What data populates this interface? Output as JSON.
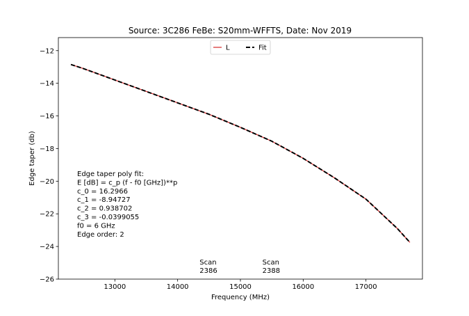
{
  "chart_data": {
    "type": "line",
    "title": "Source: 3C286 FeBe: S20mm-WFFTS, Date: Nov 2019",
    "xlabel": "Frequency (MHz)",
    "ylabel": "Edge taper (db)",
    "xlim": [
      12100,
      17900
    ],
    "ylim": [
      -26,
      -11.2
    ],
    "xticks": [
      13000,
      14000,
      15000,
      16000,
      17000
    ],
    "yticks": [
      -26,
      -24,
      -22,
      -20,
      -18,
      -16,
      -14,
      -12
    ],
    "grid": false,
    "legend_position": "top-center",
    "series": [
      {
        "name": "L",
        "color": "#d62728",
        "style": "solid",
        "x": [
          12300,
          12500,
          13000,
          13500,
          14000,
          14500,
          15000,
          15500,
          16000,
          16500,
          17000,
          17500,
          17700
        ],
        "y": [
          -12.85,
          -13.1,
          -13.8,
          -14.5,
          -15.2,
          -15.9,
          -16.7,
          -17.55,
          -18.6,
          -19.8,
          -21.1,
          -22.9,
          -23.75
        ]
      },
      {
        "name": "Fit",
        "color": "#000000",
        "style": "dashed",
        "x": [
          12300,
          12500,
          13000,
          13500,
          14000,
          14500,
          15000,
          15500,
          16000,
          16500,
          17000,
          17500,
          17700
        ],
        "y": [
          -12.85,
          -13.1,
          -13.8,
          -14.5,
          -15.2,
          -15.9,
          -16.7,
          -17.55,
          -18.6,
          -19.8,
          -21.1,
          -22.9,
          -23.75
        ]
      }
    ],
    "annotations": {
      "fit_lines": [
        "Edge taper poly fit:",
        "E [dB] = c_p (f - f0 [GHz])**p",
        "c_0 = 16.2966",
        "c_1 = -8.94727",
        "c_2 = 0.938702",
        "c_3 = -0.0399055",
        "f0 = 6 GHz",
        "Edge order: 2"
      ],
      "scans": [
        {
          "label": "Scan",
          "number": "2386",
          "x": 14350
        },
        {
          "label": "Scan",
          "number": "2388",
          "x": 15350
        }
      ]
    }
  }
}
